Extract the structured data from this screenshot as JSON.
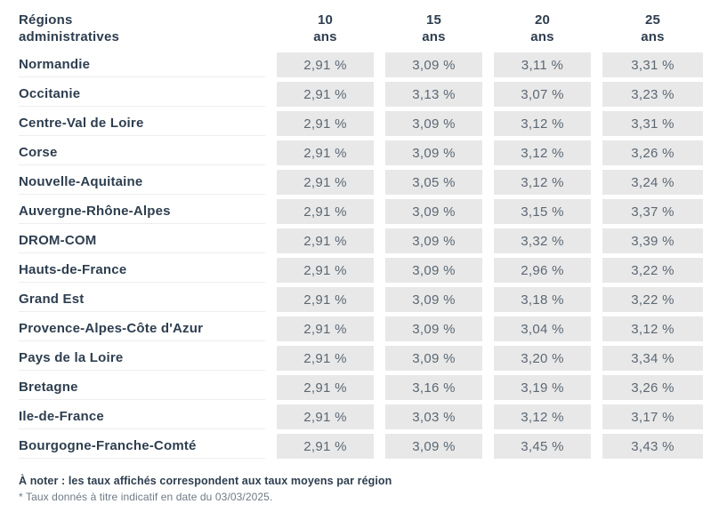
{
  "colors": {
    "dark_text": "#2e3e4f",
    "value_text": "#5d6874",
    "cell_background": "#e8e8e8",
    "divider": "#ededed",
    "muted_text": "#6e7a85"
  },
  "header": {
    "region_label": "Régions administratives",
    "duration_columns": [
      {
        "years": "10",
        "unit": "ans"
      },
      {
        "years": "15",
        "unit": "ans"
      },
      {
        "years": "20",
        "unit": "ans"
      },
      {
        "years": "25",
        "unit": "ans"
      }
    ]
  },
  "rows": [
    {
      "region": "Normandie",
      "values": [
        "2,91 %",
        "3,09 %",
        "3,11 %",
        "3,31 %"
      ]
    },
    {
      "region": "Occitanie",
      "values": [
        "2,91 %",
        "3,13 %",
        "3,07 %",
        "3,23 %"
      ]
    },
    {
      "region": "Centre-Val de Loire",
      "values": [
        "2,91 %",
        "3,09 %",
        "3,12 %",
        "3,31 %"
      ]
    },
    {
      "region": "Corse",
      "values": [
        "2,91 %",
        "3,09 %",
        "3,12 %",
        "3,26 %"
      ]
    },
    {
      "region": "Nouvelle-Aquitaine",
      "values": [
        "2,91 %",
        "3,05 %",
        "3,12 %",
        "3,24 %"
      ]
    },
    {
      "region": "Auvergne-Rhône-Alpes",
      "values": [
        "2,91 %",
        "3,09 %",
        "3,15 %",
        "3,37 %"
      ]
    },
    {
      "region": "DROM-COM",
      "values": [
        "2,91 %",
        "3,09 %",
        "3,32 %",
        "3,39 %"
      ]
    },
    {
      "region": "Hauts-de-France",
      "values": [
        "2,91 %",
        "3,09 %",
        "2,96 %",
        "3,22 %"
      ]
    },
    {
      "region": "Grand Est",
      "values": [
        "2,91 %",
        "3,09 %",
        "3,18 %",
        "3,22 %"
      ]
    },
    {
      "region": "Provence-Alpes-Côte d'Azur",
      "values": [
        "2,91 %",
        "3,09 %",
        "3,04 %",
        "3,12 %"
      ]
    },
    {
      "region": "Pays de la Loire",
      "values": [
        "2,91 %",
        "3,09 %",
        "3,20 %",
        "3,34 %"
      ]
    },
    {
      "region": "Bretagne",
      "values": [
        "2,91 %",
        "3,16 %",
        "3,19 %",
        "3,26 %"
      ]
    },
    {
      "region": "Ile-de-France",
      "values": [
        "2,91 %",
        "3,03 %",
        "3,12 %",
        "3,17 %"
      ]
    },
    {
      "region": "Bourgogne-Franche-Comté",
      "values": [
        "2,91 %",
        "3,09 %",
        "3,45 %",
        "3,43 %"
      ]
    }
  ],
  "footer": {
    "note": "À noter : les taux affichés correspondent aux taux moyens par région",
    "disclaimer": "* Taux donnés à titre indicatif en date du 03/03/2025."
  },
  "chart_data": {
    "type": "table",
    "columns": [
      "Régions administratives",
      "10 ans",
      "15 ans",
      "20 ans",
      "25 ans"
    ],
    "rows": [
      [
        "Normandie",
        "2,91 %",
        "3,09 %",
        "3,11 %",
        "3,31 %"
      ],
      [
        "Occitanie",
        "2,91 %",
        "3,13 %",
        "3,07 %",
        "3,23 %"
      ],
      [
        "Centre-Val de Loire",
        "2,91 %",
        "3,09 %",
        "3,12 %",
        "3,31 %"
      ],
      [
        "Corse",
        "2,91 %",
        "3,09 %",
        "3,12 %",
        "3,26 %"
      ],
      [
        "Nouvelle-Aquitaine",
        "2,91 %",
        "3,05 %",
        "3,12 %",
        "3,24 %"
      ],
      [
        "Auvergne-Rhône-Alpes",
        "2,91 %",
        "3,09 %",
        "3,15 %",
        "3,37 %"
      ],
      [
        "DROM-COM",
        "2,91 %",
        "3,09 %",
        "3,32 %",
        "3,39 %"
      ],
      [
        "Hauts-de-France",
        "2,91 %",
        "3,09 %",
        "2,96 %",
        "3,22 %"
      ],
      [
        "Grand Est",
        "2,91 %",
        "3,09 %",
        "3,18 %",
        "3,22 %"
      ],
      [
        "Provence-Alpes-Côte d'Azur",
        "2,91 %",
        "3,09 %",
        "3,04 %",
        "3,12 %"
      ],
      [
        "Pays de la Loire",
        "2,91 %",
        "3,09 %",
        "3,20 %",
        "3,34 %"
      ],
      [
        "Bretagne",
        "2,91 %",
        "3,16 %",
        "3,19 %",
        "3,26 %"
      ],
      [
        "Ile-de-France",
        "2,91 %",
        "3,03 %",
        "3,12 %",
        "3,17 %"
      ],
      [
        "Bourgogne-Franche-Comté",
        "2,91 %",
        "3,09 %",
        "3,45 %",
        "3,43 %"
      ]
    ],
    "rates_percent": [
      [
        2.91,
        3.09,
        3.11,
        3.31
      ],
      [
        2.91,
        3.13,
        3.07,
        3.23
      ],
      [
        2.91,
        3.09,
        3.12,
        3.31
      ],
      [
        2.91,
        3.09,
        3.12,
        3.26
      ],
      [
        2.91,
        3.05,
        3.12,
        3.24
      ],
      [
        2.91,
        3.09,
        3.15,
        3.37
      ],
      [
        2.91,
        3.09,
        3.32,
        3.39
      ],
      [
        2.91,
        3.09,
        2.96,
        3.22
      ],
      [
        2.91,
        3.09,
        3.18,
        3.22
      ],
      [
        2.91,
        3.09,
        3.04,
        3.12
      ],
      [
        2.91,
        3.09,
        3.2,
        3.34
      ],
      [
        2.91,
        3.16,
        3.19,
        3.26
      ],
      [
        2.91,
        3.03,
        3.12,
        3.17
      ],
      [
        2.91,
        3.09,
        3.45,
        3.43
      ]
    ]
  }
}
